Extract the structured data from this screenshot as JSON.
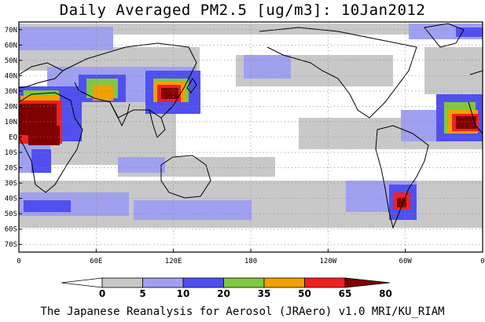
{
  "title": "Daily Averaged PM2.5 [ug/m3]: 10Jan2012",
  "footer": "The Japanese Reanalysis for Aerosol (JRAero) v1.0 MRI/KU_RIAM",
  "map": {
    "lat_range": [
      -75,
      75
    ],
    "lon_start": 0,
    "lat_ticks": [
      "70N",
      "60N",
      "50N",
      "40N",
      "30N",
      "20N",
      "10N",
      "EQ",
      "10S",
      "20S",
      "30S",
      "40S",
      "50S",
      "60S",
      "70S"
    ],
    "lon_ticks": [
      "0",
      "60E",
      "120E",
      "180",
      "120W",
      "60W",
      "0"
    ],
    "gridlines": true
  },
  "colorbar": {
    "levels": [
      "0",
      "5",
      "10",
      "20",
      "35",
      "50",
      "65",
      "80"
    ],
    "colors": [
      "#ffffff",
      "#c8c8c8",
      "#a0a0f0",
      "#5050f0",
      "#80c840",
      "#f0a000",
      "#f02020",
      "#800000"
    ]
  }
}
